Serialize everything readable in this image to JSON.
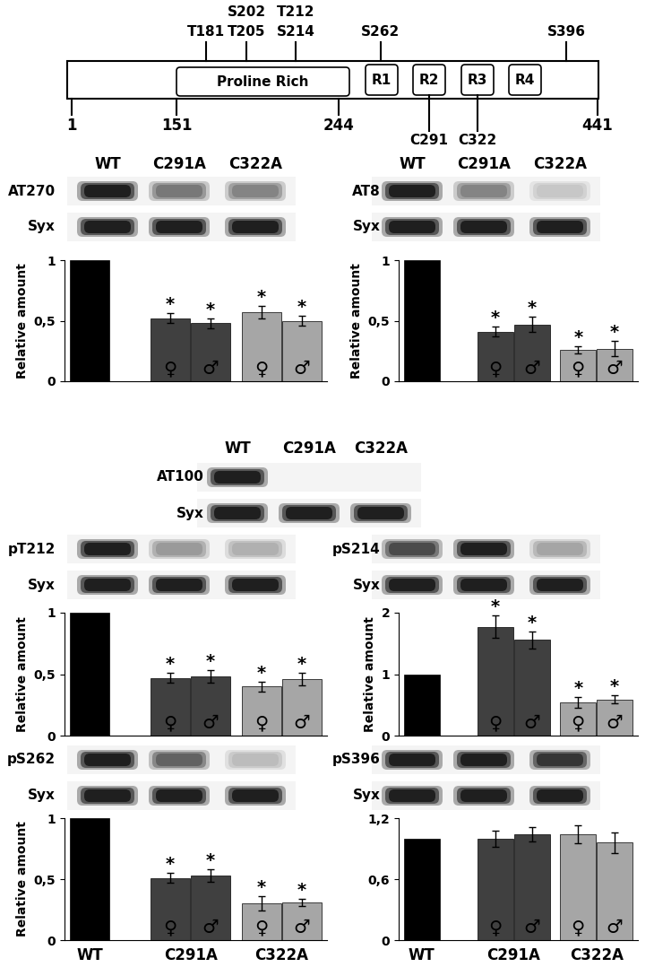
{
  "diagram": {
    "residues": [
      1,
      151,
      244,
      441
    ],
    "domains": [
      "Proline Rich",
      "R1",
      "R2",
      "R3",
      "R4"
    ],
    "phospho_sites": [
      "T181",
      "S202",
      "T205",
      "T212",
      "S214",
      "S262",
      "S396"
    ],
    "cysteines": [
      "C291",
      "C322"
    ]
  },
  "blots": [
    {
      "lanes": [
        "WT",
        "C291A",
        "C322A"
      ],
      "rows": [
        {
          "label": "AT270",
          "bands": [
            1,
            0.6,
            0.55
          ]
        },
        {
          "label": "Syx",
          "bands": [
            1,
            1,
            1
          ]
        }
      ]
    },
    {
      "lanes": [
        "WT",
        "C291A",
        "C322A"
      ],
      "rows": [
        {
          "label": "AT8",
          "bands": [
            1,
            0.55,
            0.25
          ]
        },
        {
          "label": "Syx",
          "bands": [
            1,
            1,
            1
          ]
        }
      ]
    },
    {
      "lanes": [
        "WT",
        "C291A",
        "C322A"
      ],
      "rows": [
        {
          "label": "AT100",
          "bands": [
            1,
            0,
            0
          ]
        },
        {
          "label": "Syx",
          "bands": [
            1,
            1,
            1
          ]
        }
      ]
    },
    {
      "rows": [
        {
          "label": "pT212",
          "bands": [
            1,
            0.45,
            0.35
          ]
        },
        {
          "label": "Syx",
          "bands": [
            1,
            1,
            1
          ]
        }
      ]
    },
    {
      "rows": [
        {
          "label": "pS214",
          "bands": [
            0.8,
            1,
            0.4
          ]
        },
        {
          "label": "Syx",
          "bands": [
            1,
            1,
            1
          ]
        }
      ]
    },
    {
      "rows": [
        {
          "label": "pS262",
          "bands": [
            1,
            0.7,
            0.3
          ]
        },
        {
          "label": "Syx",
          "bands": [
            1,
            1,
            1
          ]
        }
      ]
    },
    {
      "rows": [
        {
          "label": "pS396",
          "bands": [
            1,
            1,
            0.9
          ]
        },
        {
          "label": "Syx",
          "bands": [
            1,
            1,
            1
          ]
        }
      ]
    }
  ],
  "chart_data": [
    {
      "type": "bar",
      "ylabel": "Relative amount",
      "categories": [
        null,
        "♀",
        "♂",
        "♀",
        "♂"
      ],
      "values": [
        1,
        0.52,
        0.48,
        0.57,
        0.5
      ],
      "errors": [
        null,
        0.04,
        0.04,
        0.05,
        0.04
      ],
      "colors": [
        "#000000",
        "#404040",
        "#404040",
        "#a6a6a6",
        "#a6a6a6"
      ],
      "significant": [
        false,
        true,
        true,
        true,
        true
      ],
      "significance_label": "*",
      "ylim": [
        0,
        1
      ],
      "yticks": [
        0,
        {
          "value": 0.5,
          "label": "0,5"
        },
        1
      ],
      "tick_labels": "y"
    },
    {
      "type": "bar",
      "ylabel": "Relative amount",
      "categories": [
        null,
        "♀",
        "♂",
        "♀",
        "♂"
      ],
      "values": [
        1,
        0.41,
        0.47,
        0.26,
        0.27
      ],
      "errors": [
        null,
        0.04,
        0.06,
        0.03,
        0.06
      ],
      "colors": [
        "#000000",
        "#404040",
        "#404040",
        "#a6a6a6",
        "#a6a6a6"
      ],
      "significant": [
        false,
        true,
        true,
        true,
        true
      ],
      "significance_label": "*",
      "ylim": [
        0,
        1
      ],
      "yticks": [
        0,
        {
          "value": 0.5,
          "label": "0,5"
        },
        1
      ],
      "tick_labels": "y"
    },
    {
      "type": "bar",
      "ylabel": "Relative amount",
      "categories": [
        null,
        "♀",
        "♂",
        "♀",
        "♂"
      ],
      "values": [
        1,
        0.47,
        0.48,
        0.4,
        0.46
      ],
      "errors": [
        null,
        0.04,
        0.05,
        0.04,
        0.05
      ],
      "colors": [
        "#000000",
        "#404040",
        "#404040",
        "#a6a6a6",
        "#a6a6a6"
      ],
      "significant": [
        false,
        true,
        true,
        true,
        true
      ],
      "significance_label": "*",
      "ylim": [
        0,
        1
      ],
      "yticks": [
        0,
        {
          "value": 0.5,
          "label": "0,5"
        },
        1
      ],
      "tick_labels": "y"
    },
    {
      "type": "bar",
      "ylabel": "Relative amount",
      "categories": [
        null,
        "♀",
        "♂",
        "♀",
        "♂"
      ],
      "values": [
        1,
        1.77,
        1.56,
        0.54,
        0.59
      ],
      "errors": [
        null,
        0.18,
        0.14,
        0.09,
        0.07
      ],
      "colors": [
        "#000000",
        "#404040",
        "#404040",
        "#a6a6a6",
        "#a6a6a6"
      ],
      "significant": [
        false,
        true,
        true,
        true,
        true
      ],
      "significance_label": "*",
      "ylim": [
        0,
        2
      ],
      "yticks": [
        0,
        1,
        2
      ],
      "tick_labels": "y"
    },
    {
      "type": "bar",
      "ylabel": "Relative amount",
      "categories": [
        null,
        "♀",
        "♂",
        "♀",
        "♂"
      ],
      "groups": [
        "WT",
        "C291A",
        "C322A"
      ],
      "values": [
        1,
        0.51,
        0.53,
        0.3,
        0.31
      ],
      "errors": [
        null,
        0.04,
        0.05,
        0.06,
        0.03
      ],
      "colors": [
        "#000000",
        "#404040",
        "#404040",
        "#a6a6a6",
        "#a6a6a6"
      ],
      "significant": [
        false,
        true,
        true,
        true,
        true
      ],
      "significance_label": "*",
      "ylim": [
        0,
        1
      ],
      "yticks": [
        0,
        {
          "value": 0.5,
          "label": "0,5"
        },
        1
      ]
    },
    {
      "type": "bar",
      "categories": [
        null,
        "♀",
        "♂",
        "♀",
        "♂"
      ],
      "groups": [
        "WT",
        "C291A",
        "C322A"
      ],
      "values": [
        1,
        1.0,
        1.04,
        1.04,
        0.96
      ],
      "errors": [
        null,
        0.08,
        0.07,
        0.09,
        0.1
      ],
      "colors": [
        "#000000",
        "#404040",
        "#404040",
        "#a6a6a6",
        "#a6a6a6"
      ],
      "significant": [
        false,
        false,
        false,
        false,
        false
      ],
      "significance_label": "*",
      "ylim": [
        0,
        1.2
      ],
      "yticks": [
        0,
        {
          "value": 0.6,
          "label": "0,6"
        },
        {
          "value": 1.2,
          "label": "1,2"
        }
      ]
    }
  ]
}
